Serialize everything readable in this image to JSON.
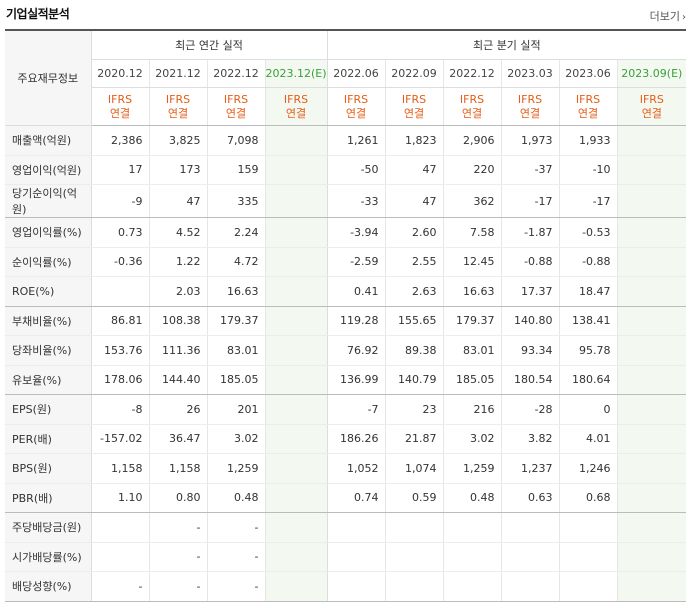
{
  "header": {
    "title": "기업실적분석",
    "more_label": "더보기"
  },
  "table": {
    "label_header": "주요재무정보",
    "annual_group": "최근 연간 실적",
    "quarter_group": "최근 분기 실적",
    "periods": [
      {
        "label": "2020.12",
        "est": false
      },
      {
        "label": "2021.12",
        "est": false
      },
      {
        "label": "2022.12",
        "est": false
      },
      {
        "label": "2023.12(E)",
        "est": true
      },
      {
        "label": "2022.06",
        "est": false
      },
      {
        "label": "2022.09",
        "est": false
      },
      {
        "label": "2022.12",
        "est": false
      },
      {
        "label": "2023.03",
        "est": false
      },
      {
        "label": "2023.06",
        "est": false
      },
      {
        "label": "2023.09(E)",
        "est": true
      }
    ],
    "accounting": [
      {
        "l1": "IFRS",
        "l2": "연결"
      },
      {
        "l1": "IFRS",
        "l2": "연결"
      },
      {
        "l1": "IFRS",
        "l2": "연결"
      },
      {
        "l1": "IFRS",
        "l2": "연결"
      },
      {
        "l1": "IFRS",
        "l2": "연결"
      },
      {
        "l1": "IFRS",
        "l2": "연결"
      },
      {
        "l1": "IFRS",
        "l2": "연결"
      },
      {
        "l1": "IFRS",
        "l2": "연결"
      },
      {
        "l1": "IFRS",
        "l2": "연결"
      },
      {
        "l1": "IFRS",
        "l2": "연결"
      }
    ],
    "rows": [
      {
        "label": "매출액(억원)",
        "values": [
          "2,386",
          "3,825",
          "7,098",
          "",
          "1,261",
          "1,823",
          "2,906",
          "1,973",
          "1,933",
          ""
        ],
        "group_end": false
      },
      {
        "label": "영업이익(억원)",
        "values": [
          "17",
          "173",
          "159",
          "",
          "-50",
          "47",
          "220",
          "-37",
          "-10",
          ""
        ],
        "group_end": false
      },
      {
        "label": "당기순이익(억원)",
        "values": [
          "-9",
          "47",
          "335",
          "",
          "-33",
          "47",
          "362",
          "-17",
          "-17",
          ""
        ],
        "group_end": true
      },
      {
        "label": "영업이익률(%)",
        "values": [
          "0.73",
          "4.52",
          "2.24",
          "",
          "-3.94",
          "2.60",
          "7.58",
          "-1.87",
          "-0.53",
          ""
        ],
        "group_end": false
      },
      {
        "label": "순이익률(%)",
        "values": [
          "-0.36",
          "1.22",
          "4.72",
          "",
          "-2.59",
          "2.55",
          "12.45",
          "-0.88",
          "-0.88",
          ""
        ],
        "group_end": false
      },
      {
        "label": "ROE(%)",
        "values": [
          "",
          "2.03",
          "16.63",
          "",
          "0.41",
          "2.63",
          "16.63",
          "17.37",
          "18.47",
          ""
        ],
        "group_end": true
      },
      {
        "label": "부채비율(%)",
        "values": [
          "86.81",
          "108.38",
          "179.37",
          "",
          "119.28",
          "155.65",
          "179.37",
          "140.80",
          "138.41",
          ""
        ],
        "group_end": false
      },
      {
        "label": "당좌비율(%)",
        "values": [
          "153.76",
          "111.36",
          "83.01",
          "",
          "76.92",
          "89.38",
          "83.01",
          "93.34",
          "95.78",
          ""
        ],
        "group_end": false
      },
      {
        "label": "유보율(%)",
        "values": [
          "178.06",
          "144.40",
          "185.05",
          "",
          "136.99",
          "140.79",
          "185.05",
          "180.54",
          "180.64",
          ""
        ],
        "group_end": true
      },
      {
        "label": "EPS(원)",
        "values": [
          "-8",
          "26",
          "201",
          "",
          "-7",
          "23",
          "216",
          "-28",
          "0",
          ""
        ],
        "group_end": false
      },
      {
        "label": "PER(배)",
        "values": [
          "-157.02",
          "36.47",
          "3.02",
          "",
          "186.26",
          "21.87",
          "3.02",
          "3.82",
          "4.01",
          ""
        ],
        "group_end": false
      },
      {
        "label": "BPS(원)",
        "values": [
          "1,158",
          "1,158",
          "1,259",
          "",
          "1,052",
          "1,074",
          "1,259",
          "1,237",
          "1,246",
          ""
        ],
        "group_end": false
      },
      {
        "label": "PBR(배)",
        "values": [
          "1.10",
          "0.80",
          "0.48",
          "",
          "0.74",
          "0.59",
          "0.48",
          "0.63",
          "0.68",
          ""
        ],
        "group_end": true
      },
      {
        "label": "주당배당금(원)",
        "values": [
          "",
          "-",
          "-",
          "",
          "",
          "",
          "",
          "",
          "",
          ""
        ],
        "group_end": false
      },
      {
        "label": "시가배당률(%)",
        "values": [
          "",
          "-",
          "-",
          "",
          "",
          "",
          "",
          "",
          "",
          ""
        ],
        "group_end": false
      },
      {
        "label": "배당성향(%)",
        "values": [
          "-",
          "-",
          "-",
          "",
          "",
          "",
          "",
          "",
          "",
          ""
        ],
        "group_end": true
      }
    ]
  }
}
